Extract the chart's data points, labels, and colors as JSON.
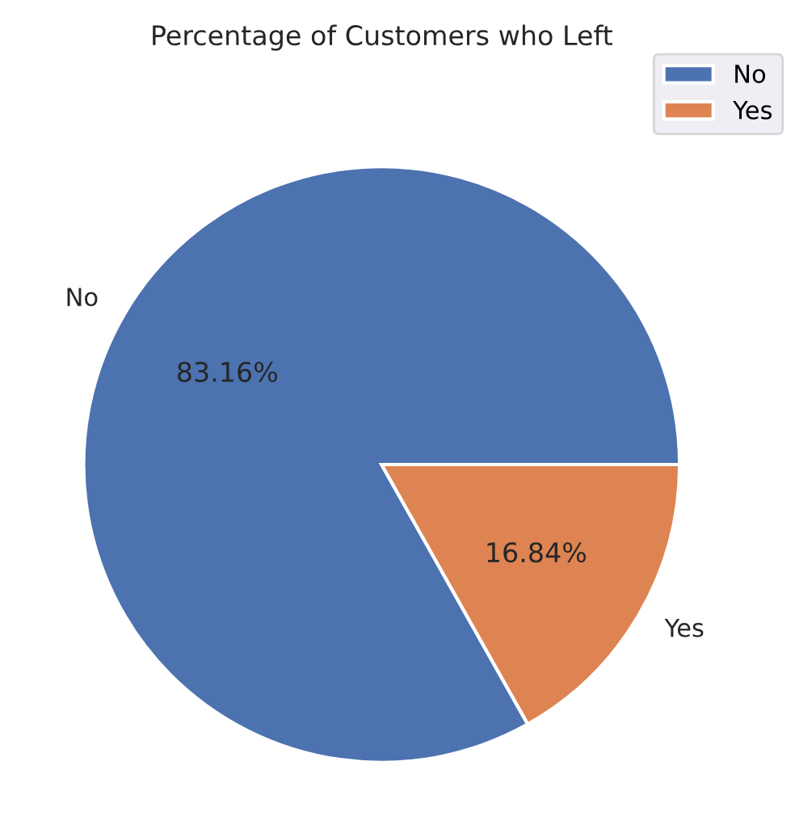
{
  "chart_data": {
    "type": "pie",
    "title": "Percentage of Customers who Left",
    "categories": [
      "No",
      "Yes"
    ],
    "values": [
      83.16,
      16.84
    ],
    "colors": [
      "#4c72b0",
      "#dd8452"
    ],
    "value_labels": [
      "83.16%",
      "16.84%"
    ],
    "legend": "top right"
  }
}
